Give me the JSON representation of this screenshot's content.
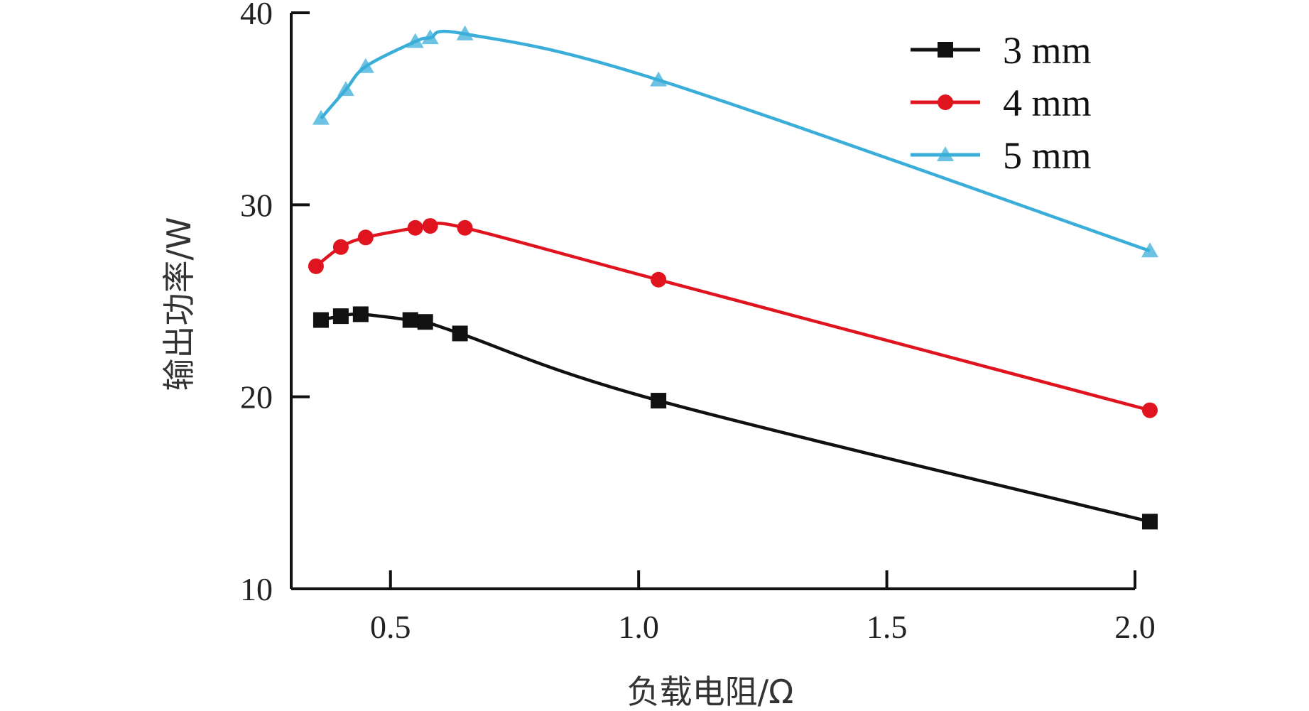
{
  "chart_data": {
    "type": "line",
    "xlabel": "负载电阻/Ω",
    "ylabel": "输出功率/W",
    "xlim": [
      0.3,
      2.0
    ],
    "ylim": [
      10,
      40
    ],
    "xticks": [
      0.5,
      1.0,
      1.5,
      2.0
    ],
    "xtick_labels": [
      "0.5",
      "1.0",
      "1.5",
      "2.0"
    ],
    "yticks": [
      10,
      20,
      30,
      40
    ],
    "ytick_labels": [
      "10",
      "20",
      "30",
      "40"
    ],
    "grid": false,
    "legend_position": "top-right",
    "series": [
      {
        "name": "3 mm",
        "color": "#111111",
        "marker": "square",
        "x": [
          0.36,
          0.4,
          0.44,
          0.54,
          0.57,
          0.64,
          1.04,
          2.03
        ],
        "y": [
          24.0,
          24.2,
          24.3,
          24.0,
          23.9,
          23.3,
          19.8,
          13.5
        ]
      },
      {
        "name": "4 mm",
        "color": "#e0141e",
        "marker": "circle",
        "x": [
          0.35,
          0.4,
          0.45,
          0.55,
          0.58,
          0.65,
          1.04,
          2.03
        ],
        "y": [
          26.8,
          27.8,
          28.3,
          28.8,
          28.9,
          28.8,
          26.1,
          19.3
        ]
      },
      {
        "name": "5 mm",
        "color": "#3aaed8",
        "marker": "triangle",
        "x": [
          0.36,
          0.41,
          0.45,
          0.55,
          0.58,
          0.65,
          1.04,
          2.03
        ],
        "y": [
          34.5,
          36.0,
          37.2,
          38.5,
          38.7,
          38.9,
          36.5,
          27.6
        ]
      }
    ]
  }
}
